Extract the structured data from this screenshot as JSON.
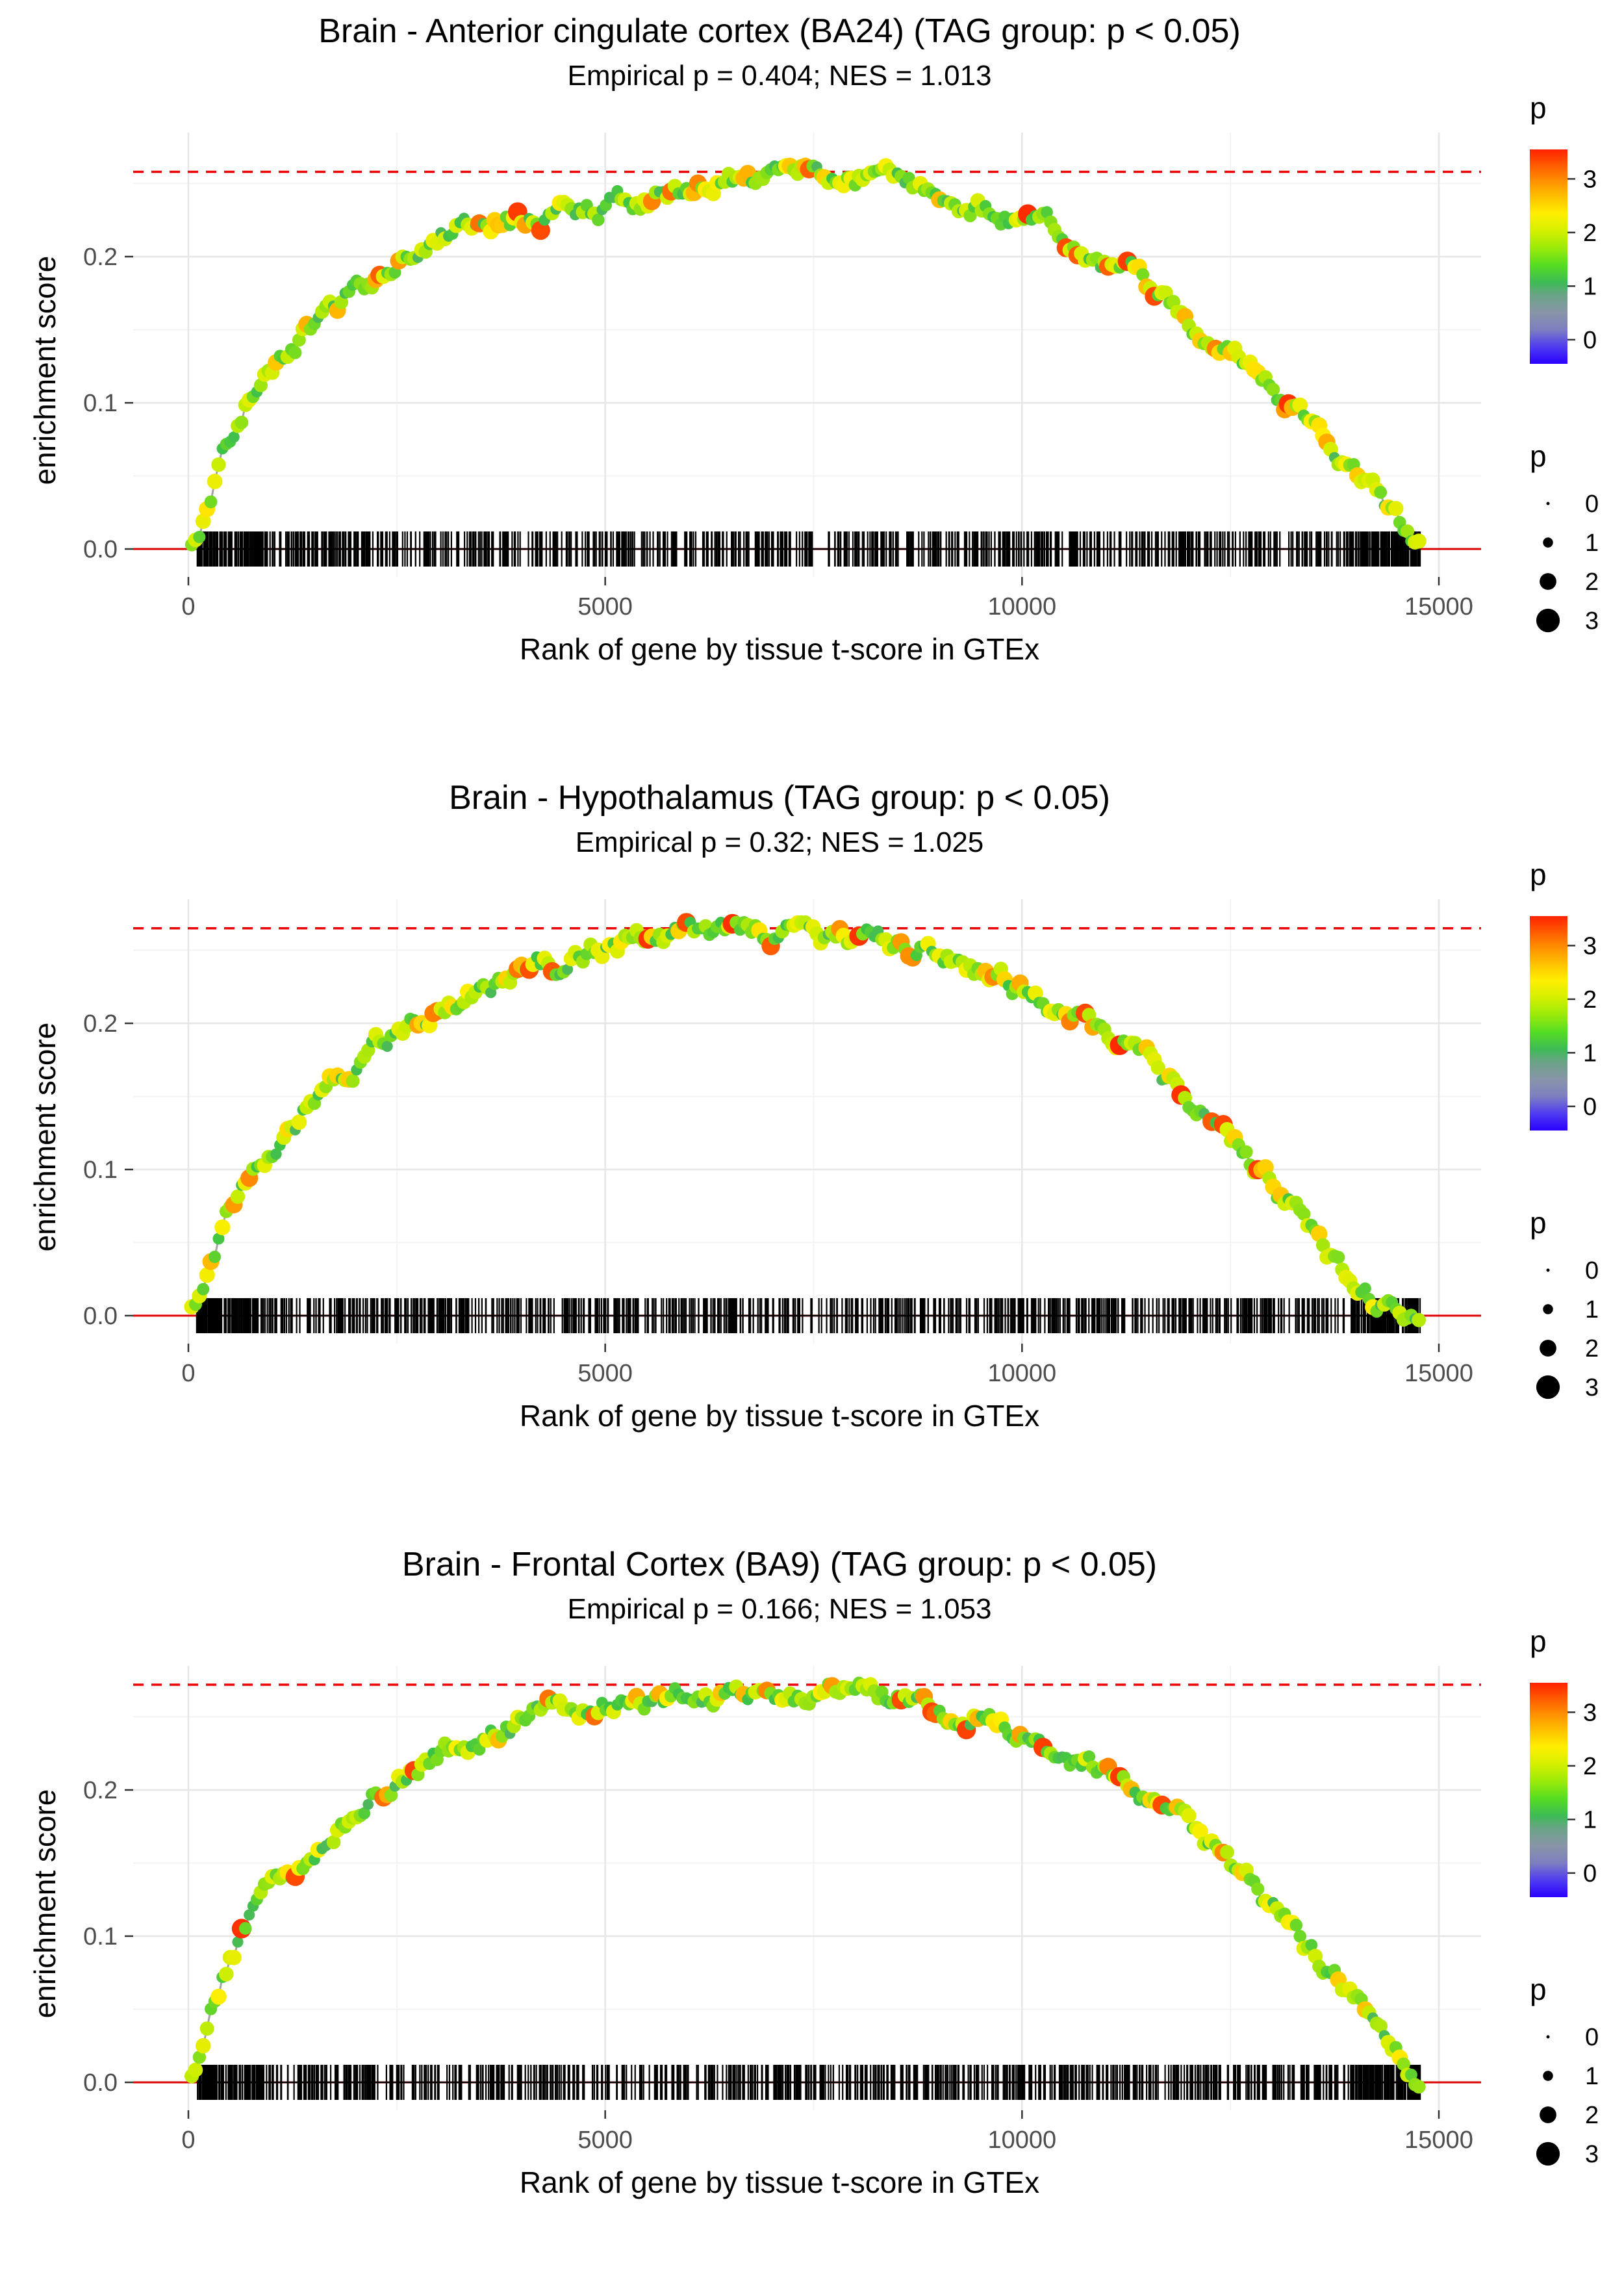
{
  "chart_data": [
    {
      "type": "scatter",
      "title": "Brain - Anterior cingulate cortex (BA24) (TAG group: p < 0.05)",
      "subtitle": "Empirical p = 0.404; NES = 1.013",
      "xlabel": "Rank of gene by tissue t-score in GTEx",
      "ylabel": "enrichment score",
      "xlim": [
        -660,
        15500
      ],
      "ylim": [
        -0.019,
        0.285
      ],
      "x_ticks": [
        0,
        5000,
        10000,
        15000
      ],
      "x_tick_labels": [
        "0",
        "5000",
        "10000",
        "15000"
      ],
      "y_ticks": [
        0.0,
        0.1,
        0.2
      ],
      "y_tick_labels": [
        "0.0",
        "0.1",
        "0.2"
      ],
      "dashed_max_es": 0.258,
      "zero_line_color": "#dd0000",
      "dashed_line_color": "#ee0000",
      "seed": 11,
      "curve": {
        "x": [
          0,
          150,
          350,
          500,
          700,
          900,
          1100,
          1400,
          1700,
          2000,
          2300,
          2600,
          2900,
          3200,
          3500,
          3800,
          4100,
          4400,
          4700,
          5000,
          5300,
          5600,
          5900,
          6200,
          6500,
          6800,
          7100,
          7400,
          7700,
          8000,
          8300,
          8600,
          8900,
          9200,
          9500,
          9800,
          10100,
          10400,
          10700,
          11000,
          11300,
          11600,
          11900,
          12200,
          12500,
          12800,
          13100,
          13400,
          13700,
          14000,
          14300,
          14600,
          14800
        ],
        "y": [
          0,
          0.02,
          0.055,
          0.075,
          0.1,
          0.115,
          0.125,
          0.145,
          0.16,
          0.175,
          0.19,
          0.205,
          0.215,
          0.218,
          0.222,
          0.228,
          0.222,
          0.226,
          0.23,
          0.232,
          0.238,
          0.242,
          0.24,
          0.247,
          0.252,
          0.25,
          0.254,
          0.256,
          0.258,
          0.256,
          0.252,
          0.25,
          0.246,
          0.24,
          0.235,
          0.23,
          0.222,
          0.214,
          0.206,
          0.198,
          0.188,
          0.177,
          0.165,
          0.152,
          0.14,
          0.125,
          0.108,
          0.09,
          0.072,
          0.052,
          0.033,
          0.01,
          0
        ]
      },
      "rug": {
        "n": 780,
        "x_min": 100,
        "x_max": 14780,
        "end_cluster_n": 70
      },
      "color_legend": {
        "title": "p",
        "ticks": [
          3,
          2,
          1,
          0
        ]
      },
      "size_legend": {
        "title": "p",
        "ticks": [
          0,
          1,
          2,
          3
        ]
      }
    },
    {
      "type": "scatter",
      "title": "Brain - Hypothalamus (TAG group: p < 0.05)",
      "subtitle": "Empirical p = 0.32; NES = 1.025",
      "xlabel": "Rank of gene by tissue t-score in GTEx",
      "ylabel": "enrichment score",
      "xlim": [
        -660,
        15500
      ],
      "ylim": [
        -0.019,
        0.285
      ],
      "x_ticks": [
        0,
        5000,
        10000,
        15000
      ],
      "x_tick_labels": [
        "0",
        "5000",
        "10000",
        "15000"
      ],
      "y_ticks": [
        0.0,
        0.1,
        0.2
      ],
      "y_tick_labels": [
        "0.0",
        "0.1",
        "0.2"
      ],
      "dashed_max_es": 0.265,
      "zero_line_color": "#dd0000",
      "dashed_line_color": "#ee0000",
      "seed": 22,
      "curve": {
        "x": [
          0,
          150,
          350,
          500,
          700,
          900,
          1100,
          1400,
          1700,
          2000,
          2300,
          2600,
          2900,
          3200,
          3500,
          3800,
          4100,
          4400,
          4700,
          5000,
          5300,
          5600,
          5900,
          6200,
          6500,
          6800,
          7100,
          7400,
          7700,
          8000,
          8300,
          8600,
          8900,
          9200,
          9500,
          9800,
          10100,
          10400,
          10700,
          11000,
          11300,
          11600,
          11900,
          12200,
          12500,
          12800,
          13100,
          13400,
          13700,
          14000,
          14300,
          14600,
          14800
        ],
        "y": [
          0,
          0.018,
          0.05,
          0.07,
          0.095,
          0.11,
          0.125,
          0.142,
          0.158,
          0.172,
          0.185,
          0.198,
          0.208,
          0.215,
          0.222,
          0.232,
          0.24,
          0.238,
          0.245,
          0.252,
          0.255,
          0.258,
          0.262,
          0.263,
          0.265,
          0.263,
          0.26,
          0.262,
          0.258,
          0.26,
          0.257,
          0.254,
          0.25,
          0.244,
          0.237,
          0.23,
          0.222,
          0.213,
          0.203,
          0.192,
          0.18,
          0.167,
          0.152,
          0.136,
          0.12,
          0.102,
          0.083,
          0.063,
          0.043,
          0.024,
          0.008,
          0.0,
          0.0
        ]
      },
      "rug": {
        "n": 780,
        "x_min": 100,
        "x_max": 14780,
        "end_cluster_n": 70
      },
      "color_legend": {
        "title": "p",
        "ticks": [
          3,
          2,
          1,
          0
        ]
      },
      "size_legend": {
        "title": "p",
        "ticks": [
          0,
          1,
          2,
          3
        ]
      }
    },
    {
      "type": "scatter",
      "title": "Brain - Frontal Cortex (BA9) (TAG group: p < 0.05)",
      "subtitle": "Empirical p = 0.166; NES = 1.053",
      "xlabel": "Rank of gene by tissue t-score in GTEx",
      "ylabel": "enrichment score",
      "xlim": [
        -660,
        15500
      ],
      "ylim": [
        -0.019,
        0.285
      ],
      "x_ticks": [
        0,
        5000,
        10000,
        15000
      ],
      "x_tick_labels": [
        "0",
        "5000",
        "10000",
        "15000"
      ],
      "y_ticks": [
        0.0,
        0.1,
        0.2
      ],
      "y_tick_labels": [
        "0.0",
        "0.1",
        "0.2"
      ],
      "dashed_max_es": 0.272,
      "zero_line_color": "#dd0000",
      "dashed_line_color": "#ee0000",
      "seed": 33,
      "curve": {
        "x": [
          0,
          150,
          350,
          500,
          700,
          900,
          1100,
          1400,
          1700,
          2000,
          2300,
          2600,
          2900,
          3200,
          3500,
          3800,
          4100,
          4400,
          4700,
          5000,
          5300,
          5600,
          5900,
          6200,
          6500,
          6800,
          7100,
          7400,
          7700,
          8000,
          8300,
          8600,
          8900,
          9200,
          9500,
          9800,
          10100,
          10400,
          10700,
          11000,
          11300,
          11600,
          11900,
          12200,
          12500,
          12800,
          13100,
          13400,
          13700,
          14000,
          14300,
          14600,
          14800
        ],
        "y": [
          0,
          0.025,
          0.06,
          0.085,
          0.108,
          0.122,
          0.135,
          0.15,
          0.165,
          0.18,
          0.195,
          0.21,
          0.222,
          0.228,
          0.235,
          0.242,
          0.248,
          0.252,
          0.255,
          0.258,
          0.256,
          0.26,
          0.263,
          0.26,
          0.264,
          0.262,
          0.265,
          0.263,
          0.268,
          0.272,
          0.262,
          0.258,
          0.256,
          0.252,
          0.248,
          0.243,
          0.237,
          0.23,
          0.222,
          0.213,
          0.202,
          0.19,
          0.177,
          0.163,
          0.148,
          0.132,
          0.114,
          0.095,
          0.075,
          0.054,
          0.032,
          0.012,
          0
        ]
      },
      "rug": {
        "n": 780,
        "x_min": 100,
        "x_max": 14780,
        "end_cluster_n": 70
      },
      "color_legend": {
        "title": "p",
        "ticks": [
          3,
          2,
          1,
          0
        ]
      },
      "size_legend": {
        "title": "p",
        "ticks": [
          0,
          1,
          2,
          3
        ]
      }
    }
  ]
}
